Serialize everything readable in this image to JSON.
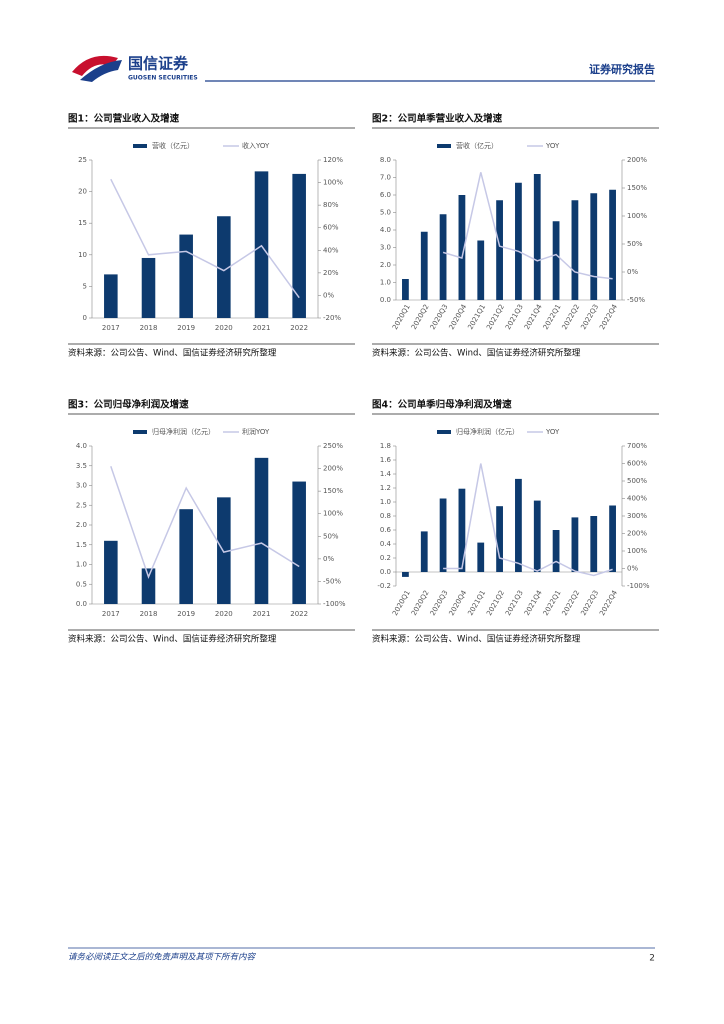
{
  "header": {
    "logo_cn": "国信证券",
    "logo_en": "GUOSEN SECURITIES",
    "report_type": "证券研究报告"
  },
  "footer": {
    "disclaimer": "请务必阅读正文之后的免责声明及其项下所有内容",
    "page": "2"
  },
  "chart_data": [
    {
      "type": "combo",
      "title": "图1：公司营业收入及增速",
      "source": "资料来源：公司公告、Wind、国信证券经济研究所整理",
      "categories": [
        "2017",
        "2018",
        "2019",
        "2020",
        "2021",
        "2022"
      ],
      "series": [
        {
          "name": "营收（亿元）",
          "type": "bar",
          "color": "#0d3a6e",
          "values": [
            6.9,
            9.5,
            13.2,
            16.1,
            23.2,
            22.8
          ]
        },
        {
          "name": "收入YOY",
          "type": "line",
          "axis": "y2",
          "color": "#c6c8e6",
          "values": [
            103,
            36,
            39,
            22,
            44,
            -2
          ]
        }
      ],
      "ylim": [
        0,
        25
      ],
      "yticks": [
        0,
        5,
        10,
        15,
        20,
        25
      ],
      "y2lim": [
        -20,
        120
      ],
      "y2ticks": [
        {
          "value": -20,
          "label": "-20%"
        },
        {
          "value": 0,
          "label": "0%"
        },
        {
          "value": 20,
          "label": "20%"
        },
        {
          "value": 40,
          "label": "40%"
        },
        {
          "value": 60,
          "label": "60%"
        },
        {
          "value": 80,
          "label": "80%"
        },
        {
          "value": 100,
          "label": "100%"
        },
        {
          "value": 120,
          "label": "120%"
        }
      ]
    },
    {
      "type": "combo",
      "title": "图2：公司单季营业收入及增速",
      "source": "资料来源：公司公告、Wind、国信证券经济研究所整理",
      "categories": [
        "2020Q1",
        "2020Q2",
        "2020Q3",
        "2020Q4",
        "2021Q1",
        "2021Q2",
        "2021Q3",
        "2021Q4",
        "2022Q1",
        "2022Q2",
        "2022Q3",
        "2022Q4"
      ],
      "series": [
        {
          "name": "营收（亿元）",
          "type": "bar",
          "color": "#0d3a6e",
          "values": [
            1.2,
            3.9,
            4.9,
            6.0,
            3.4,
            5.7,
            6.7,
            7.2,
            4.5,
            5.7,
            6.1,
            6.3
          ]
        },
        {
          "name": "YOY",
          "type": "line",
          "axis": "y2",
          "color": "#c6c8e6",
          "values": [
            null,
            null,
            35,
            25,
            178,
            46,
            37,
            20,
            31,
            0,
            -8,
            -12
          ]
        }
      ],
      "ylim": [
        0,
        8
      ],
      "yticks": [
        {
          "value": 0,
          "label": "0.0"
        },
        {
          "value": 1,
          "label": "1.0"
        },
        {
          "value": 2,
          "label": "2.0"
        },
        {
          "value": 3,
          "label": "3.0"
        },
        {
          "value": 4,
          "label": "4.0"
        },
        {
          "value": 5,
          "label": "5.0"
        },
        {
          "value": 6,
          "label": "6.0"
        },
        {
          "value": 7,
          "label": "7.0"
        },
        {
          "value": 8,
          "label": "8.0"
        }
      ],
      "y2lim": [
        -50,
        200
      ],
      "y2ticks": [
        {
          "value": -50,
          "label": "-50%"
        },
        {
          "value": 0,
          "label": "0%"
        },
        {
          "value": 50,
          "label": "50%"
        },
        {
          "value": 100,
          "label": "100%"
        },
        {
          "value": 150,
          "label": "150%"
        },
        {
          "value": 200,
          "label": "200%"
        }
      ]
    },
    {
      "type": "combo",
      "title": "图3：公司归母净利润及增速",
      "source": "资料来源：公司公告、Wind、国信证券经济研究所整理",
      "categories": [
        "2017",
        "2018",
        "2019",
        "2020",
        "2021",
        "2022"
      ],
      "series": [
        {
          "name": "归母净利润（亿元）",
          "type": "bar",
          "color": "#0d3a6e",
          "values": [
            1.6,
            0.9,
            2.4,
            2.7,
            3.7,
            3.1
          ]
        },
        {
          "name": "利润YOY",
          "type": "line",
          "axis": "y2",
          "color": "#c6c8e6",
          "values": [
            205,
            -40,
            157,
            15,
            35,
            -17
          ]
        }
      ],
      "ylim": [
        0,
        4
      ],
      "yticks": [
        {
          "value": 0,
          "label": "0.0"
        },
        {
          "value": 0.5,
          "label": "0.5"
        },
        {
          "value": 1,
          "label": "1.0"
        },
        {
          "value": 1.5,
          "label": "1.5"
        },
        {
          "value": 2,
          "label": "2.0"
        },
        {
          "value": 2.5,
          "label": "2.5"
        },
        {
          "value": 3,
          "label": "3.0"
        },
        {
          "value": 3.5,
          "label": "3.5"
        },
        {
          "value": 4,
          "label": "4.0"
        }
      ],
      "y2lim": [
        -100,
        250
      ],
      "y2ticks": [
        {
          "value": -100,
          "label": "-100%"
        },
        {
          "value": -50,
          "label": "-50%"
        },
        {
          "value": 0,
          "label": "0%"
        },
        {
          "value": 50,
          "label": "50%"
        },
        {
          "value": 100,
          "label": "100%"
        },
        {
          "value": 150,
          "label": "150%"
        },
        {
          "value": 200,
          "label": "200%"
        },
        {
          "value": 250,
          "label": "250%"
        }
      ]
    },
    {
      "type": "combo",
      "title": "图4：公司单季归母净利润及增速",
      "source": "资料来源：公司公告、Wind、国信证券经济研究所整理",
      "categories": [
        "2020Q1",
        "2020Q2",
        "2020Q3",
        "2020Q4",
        "2021Q1",
        "2021Q2",
        "2021Q3",
        "2021Q4",
        "2022Q1",
        "2022Q2",
        "2022Q3",
        "2022Q4"
      ],
      "series": [
        {
          "name": "归母净利润（亿元）",
          "type": "bar",
          "color": "#0d3a6e",
          "values": [
            -0.07,
            0.58,
            1.05,
            1.19,
            0.42,
            0.94,
            1.33,
            1.02,
            0.6,
            0.78,
            0.8,
            0.95
          ]
        },
        {
          "name": "YOY",
          "type": "line",
          "axis": "y2",
          "color": "#c6c8e6",
          "values": [
            null,
            null,
            0,
            0,
            600,
            60,
            30,
            -15,
            40,
            -15,
            -40,
            -5
          ]
        }
      ],
      "ylim": [
        -0.2,
        1.8
      ],
      "yticks": [
        {
          "value": -0.2,
          "label": "-0.2"
        },
        {
          "value": 0,
          "label": "0.0"
        },
        {
          "value": 0.2,
          "label": "0.2"
        },
        {
          "value": 0.4,
          "label": "0.4"
        },
        {
          "value": 0.6,
          "label": "0.6"
        },
        {
          "value": 0.8,
          "label": "0.8"
        },
        {
          "value": 1,
          "label": "1.0"
        },
        {
          "value": 1.2,
          "label": "1.2"
        },
        {
          "value": 1.4,
          "label": "1.4"
        },
        {
          "value": 1.6,
          "label": "1.6"
        },
        {
          "value": 1.8,
          "label": "1.8"
        }
      ],
      "y2lim": [
        -100,
        700
      ],
      "y2ticks": [
        {
          "value": -100,
          "label": "-100%"
        },
        {
          "value": 0,
          "label": "0%"
        },
        {
          "value": 100,
          "label": "100%"
        },
        {
          "value": 200,
          "label": "200%"
        },
        {
          "value": 300,
          "label": "300%"
        },
        {
          "value": 400,
          "label": "400%"
        },
        {
          "value": 500,
          "label": "500%"
        },
        {
          "value": 600,
          "label": "600%"
        },
        {
          "value": 700,
          "label": "700%"
        }
      ]
    }
  ]
}
